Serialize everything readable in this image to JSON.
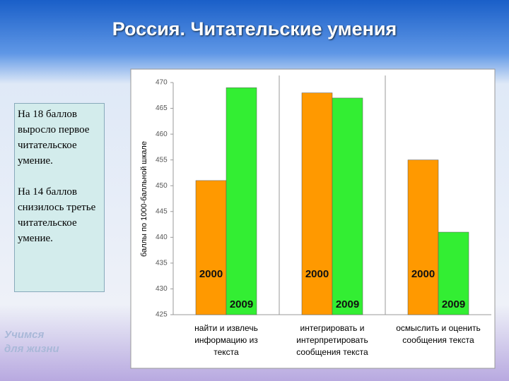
{
  "chart_data": {
    "type": "bar",
    "title": "Россия. Читательские умения",
    "y_label": "баллы по 1000-балльной шкале",
    "categories": [
      [
        "найти и извлечь",
        "информацию из",
        "текста"
      ],
      [
        "интегрировать и",
        "интерпретировать",
        "сообщения текста"
      ],
      [
        "осмыслить и оценить",
        "сообщения текста"
      ]
    ],
    "series": [
      {
        "name": "2000",
        "color": "#ff9900",
        "values": [
          451,
          468,
          455
        ]
      },
      {
        "name": "2009",
        "color": "#33ee33",
        "values": [
          469,
          467,
          441
        ]
      }
    ],
    "ylim": [
      425,
      470
    ],
    "yticks": [
      425,
      430,
      435,
      440,
      445,
      450,
      455,
      460,
      465,
      470
    ]
  },
  "sidebar": [
    "На 18 баллов выросло первое читательское умение.",
    "На 14 баллов снизилось третье читательское умение."
  ],
  "logo": [
    "Учимся",
    "для жизни"
  ]
}
